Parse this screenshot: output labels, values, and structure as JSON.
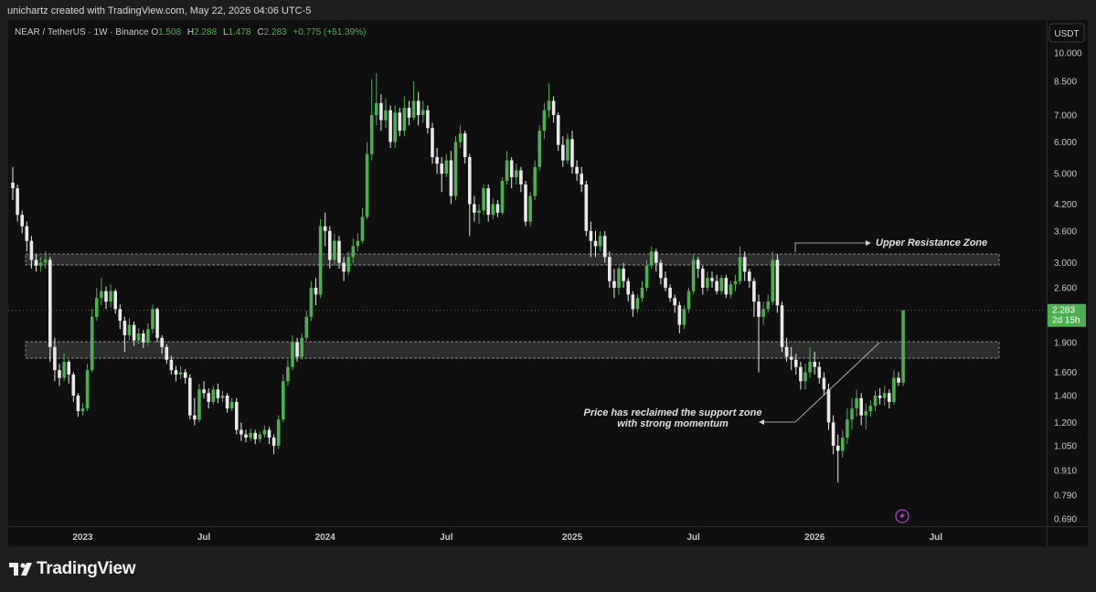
{
  "header": {
    "attribution": "unichartz created with TradingView.com, May 22, 2026 04:06 UTC-5"
  },
  "chart_data": {
    "type": "candlestick",
    "title": "NEAR / TetherUS · 1W · Binance",
    "ohlc_labels": [
      "O",
      "H",
      "L",
      "C"
    ],
    "change": "+0.775 (+51.39%)",
    "currency": "USDT",
    "countdown": "2d 15h",
    "up_color": "#4caf50",
    "down_color": "#e8e8e8",
    "log_scale": true,
    "grid": false,
    "ylim": [
      0.665,
      10.76
    ],
    "yticks": [
      {
        "value": 10,
        "label": "10.000"
      },
      {
        "value": 8.5,
        "label": "8.500"
      },
      {
        "value": 7,
        "label": "7.000"
      },
      {
        "value": 6,
        "label": "6.000"
      },
      {
        "value": 5,
        "label": "5.000"
      },
      {
        "value": 4.2,
        "label": "4.200"
      },
      {
        "value": 3.6,
        "label": "3.600"
      },
      {
        "value": 3,
        "label": "3.000"
      },
      {
        "value": 2.6,
        "label": "2.600"
      },
      {
        "value": 1.9,
        "label": "1.900"
      },
      {
        "value": 1.6,
        "label": "1.600"
      },
      {
        "value": 1.4,
        "label": "1.400"
      },
      {
        "value": 1.2,
        "label": "1.200"
      },
      {
        "value": 1.05,
        "label": "1.050"
      },
      {
        "value": 0.91,
        "label": "0.910"
      },
      {
        "value": 0.79,
        "label": "0.790"
      },
      {
        "value": 0.69,
        "label": "0.690"
      }
    ],
    "categories": [
      null,
      null,
      null,
      null,
      null,
      null,
      null,
      null,
      null,
      null,
      null,
      null,
      null,
      null,
      null,
      "2023",
      null,
      null,
      null,
      null,
      null,
      null,
      null,
      null,
      null,
      null,
      null,
      null,
      null,
      null,
      null,
      null,
      null,
      null,
      null,
      null,
      null,
      null,
      null,
      null,
      null,
      "Jul",
      null,
      null,
      null,
      null,
      null,
      null,
      null,
      null,
      null,
      null,
      null,
      null,
      null,
      null,
      null,
      null,
      null,
      null,
      null,
      null,
      null,
      null,
      null,
      null,
      null,
      "2024",
      null,
      null,
      null,
      null,
      null,
      null,
      null,
      null,
      null,
      null,
      null,
      null,
      null,
      null,
      null,
      null,
      null,
      null,
      null,
      null,
      null,
      null,
      null,
      null,
      null,
      "Jul",
      null,
      null,
      null,
      null,
      null,
      null,
      null,
      null,
      null,
      null,
      null,
      null,
      null,
      null,
      null,
      null,
      null,
      null,
      null,
      null,
      null,
      null,
      null,
      null,
      null,
      null,
      "2025",
      null,
      null,
      null,
      null,
      null,
      null,
      null,
      null,
      null,
      null,
      null,
      null,
      null,
      null,
      null,
      null,
      null,
      null,
      null,
      null,
      null,
      null,
      null,
      null,
      null,
      "Jul",
      null,
      null,
      null,
      null,
      null,
      null,
      null,
      null,
      null,
      null,
      null,
      null,
      null,
      null,
      null,
      null,
      null,
      null,
      null,
      null,
      null,
      null,
      null,
      null,
      null,
      "2026",
      null,
      null,
      null,
      null,
      null,
      null,
      null,
      null,
      null,
      null,
      null,
      null,
      null,
      null,
      null,
      null,
      null,
      null,
      null,
      null,
      null,
      null,
      null,
      null,
      null,
      "Jul"
    ],
    "open": [
      4.75,
      4.6,
      3.95,
      3.7,
      3.4,
      3.05,
      2.95,
      3.0,
      3.05,
      1.85,
      1.62,
      1.55,
      1.7,
      1.58,
      1.4,
      1.28,
      1.3,
      1.62,
      2.2,
      2.45,
      2.55,
      2.4,
      2.55,
      2.3,
      2.15,
      1.98,
      2.1,
      1.92,
      2.0,
      1.9,
      2.05,
      2.3,
      1.95,
      1.85,
      1.72,
      1.62,
      1.58,
      1.6,
      1.55,
      1.25,
      1.22,
      1.45,
      1.42,
      1.35,
      1.45,
      1.38,
      1.4,
      1.3,
      1.35,
      1.15,
      1.12,
      1.1,
      1.13,
      1.09,
      1.12,
      1.15,
      1.1,
      1.05,
      1.22,
      1.52,
      1.65,
      1.9,
      1.75,
      1.95,
      2.2,
      2.6,
      2.5,
      3.7,
      3.6,
      3.05,
      3.4,
      3.0,
      2.85,
      3.1,
      3.3,
      3.4,
      3.9,
      5.6,
      7.0,
      7.5,
      6.8,
      7.2,
      6.0,
      7.1,
      6.4,
      7.3,
      6.9,
      7.6,
      7.0,
      7.2,
      6.5,
      5.5,
      5.3,
      5.0,
      5.4,
      4.4,
      6.0,
      6.3,
      5.5,
      4.2,
      4.0,
      4.05,
      4.6,
      3.95,
      4.2,
      4.0,
      4.8,
      5.4,
      4.9,
      5.1,
      4.7,
      3.8,
      4.4,
      5.2,
      6.4,
      7.2,
      7.6,
      7.0,
      5.9,
      5.4,
      6.1,
      5.2,
      5.0,
      4.7,
      3.6,
      3.4,
      3.3,
      3.5,
      3.1,
      2.7,
      2.6,
      2.9,
      2.7,
      2.5,
      2.3,
      2.45,
      2.6,
      2.95,
      3.2,
      3.0,
      2.75,
      2.6,
      2.45,
      2.35,
      2.1,
      2.3,
      2.55,
      3.05,
      2.9,
      2.6,
      2.75,
      2.7,
      2.55,
      2.75,
      2.5,
      2.65,
      2.7,
      3.1,
      2.85,
      2.7,
      2.4,
      2.2,
      2.3,
      2.4,
      3.05,
      2.35,
      1.85,
      1.75,
      1.72,
      1.65,
      1.52,
      1.6,
      1.7,
      1.65,
      1.55,
      1.45,
      1.2,
      1.05,
      1.02,
      1.1,
      1.22,
      1.3,
      1.38,
      1.25,
      1.28,
      1.32,
      1.4,
      1.38,
      1.42,
      1.35,
      1.55,
      1.508,
      null,
      null,
      null,
      null,
      null,
      null,
      null
    ],
    "high": [
      5.2,
      4.7,
      4.05,
      3.8,
      3.5,
      3.15,
      3.1,
      3.2,
      3.1,
      1.95,
      1.68,
      1.78,
      1.72,
      1.6,
      1.42,
      1.34,
      1.68,
      2.3,
      2.6,
      2.75,
      2.62,
      2.65,
      2.58,
      2.36,
      2.2,
      2.18,
      2.14,
      2.06,
      2.04,
      2.12,
      2.36,
      2.32,
      1.98,
      1.88,
      1.76,
      1.66,
      1.66,
      1.63,
      1.58,
      1.38,
      1.5,
      1.52,
      1.46,
      1.48,
      1.5,
      1.44,
      1.42,
      1.38,
      1.38,
      1.2,
      1.15,
      1.16,
      1.15,
      1.14,
      1.18,
      1.17,
      1.12,
      1.25,
      1.58,
      1.72,
      1.98,
      1.95,
      2.0,
      2.28,
      2.7,
      2.75,
      3.85,
      4.0,
      3.7,
      3.55,
      3.5,
      3.1,
      3.2,
      3.45,
      3.55,
      4.1,
      6.0,
      8.6,
      8.9,
      7.9,
      7.7,
      7.4,
      7.4,
      7.3,
      7.8,
      7.6,
      8.5,
      8.0,
      7.6,
      7.4,
      6.7,
      5.8,
      5.5,
      5.6,
      5.7,
      6.2,
      6.6,
      6.4,
      5.6,
      4.4,
      4.2,
      4.7,
      4.7,
      4.35,
      4.3,
      4.9,
      5.7,
      5.5,
      5.3,
      5.2,
      4.8,
      4.5,
      5.4,
      6.6,
      7.5,
      8.4,
      7.8,
      7.1,
      6.2,
      6.3,
      6.4,
      5.4,
      5.2,
      4.8,
      3.8,
      3.6,
      3.6,
      3.6,
      3.2,
      2.9,
      2.95,
      3.0,
      2.75,
      2.55,
      2.5,
      2.7,
      3.05,
      3.3,
      3.25,
      3.05,
      2.85,
      2.65,
      2.5,
      2.4,
      2.35,
      2.6,
      3.15,
      3.1,
      2.95,
      2.85,
      2.85,
      2.8,
      2.8,
      2.8,
      2.7,
      2.8,
      3.3,
      3.2,
      2.9,
      2.75,
      2.5,
      2.4,
      2.5,
      3.2,
      3.15,
      2.4,
      1.95,
      1.85,
      1.78,
      1.7,
      1.68,
      1.85,
      1.8,
      1.7,
      1.6,
      1.5,
      1.25,
      1.12,
      1.15,
      1.3,
      1.38,
      1.45,
      1.42,
      1.34,
      1.36,
      1.44,
      1.46,
      1.48,
      1.45,
      1.62,
      1.6,
      2.288,
      null,
      null,
      null,
      null,
      null,
      null,
      null
    ],
    "low": [
      4.3,
      3.8,
      3.55,
      3.2,
      2.9,
      2.85,
      2.85,
      2.9,
      1.7,
      1.52,
      1.48,
      1.52,
      1.5,
      1.35,
      1.24,
      1.25,
      1.28,
      1.6,
      2.15,
      2.35,
      2.3,
      2.32,
      2.24,
      2.05,
      1.8,
      1.92,
      1.86,
      1.88,
      1.84,
      1.86,
      2.0,
      1.9,
      1.78,
      1.68,
      1.58,
      1.52,
      1.54,
      1.5,
      1.22,
      1.18,
      1.2,
      1.38,
      1.3,
      1.33,
      1.34,
      1.35,
      1.27,
      1.28,
      1.12,
      1.08,
      1.07,
      1.08,
      1.06,
      1.07,
      1.1,
      1.06,
      1.0,
      1.03,
      1.2,
      1.48,
      1.62,
      1.7,
      1.72,
      1.92,
      2.15,
      2.35,
      2.45,
      3.3,
      2.9,
      2.95,
      2.9,
      2.7,
      2.8,
      3.0,
      3.2,
      3.35,
      3.85,
      5.4,
      6.6,
      6.4,
      6.5,
      5.8,
      5.8,
      6.2,
      6.2,
      6.6,
      6.8,
      6.6,
      6.7,
      6.3,
      5.3,
      5.0,
      4.5,
      4.9,
      4.2,
      4.3,
      5.8,
      5.3,
      3.5,
      3.8,
      3.75,
      3.95,
      3.8,
      3.85,
      3.9,
      3.95,
      4.7,
      4.6,
      4.7,
      4.5,
      3.7,
      3.7,
      4.3,
      5.1,
      6.1,
      6.9,
      6.7,
      5.7,
      5.2,
      5.3,
      5.0,
      4.8,
      4.5,
      3.5,
      3.1,
      3.1,
      3.2,
      3.0,
      2.6,
      2.45,
      2.5,
      2.6,
      2.4,
      2.2,
      2.25,
      2.4,
      2.55,
      2.9,
      2.85,
      2.65,
      2.55,
      2.4,
      2.25,
      2.0,
      2.05,
      2.25,
      2.5,
      2.75,
      2.5,
      2.55,
      2.6,
      2.5,
      2.5,
      2.45,
      2.45,
      2.55,
      2.65,
      2.7,
      2.6,
      2.2,
      1.6,
      2.1,
      2.25,
      2.35,
      2.25,
      1.8,
      1.7,
      1.62,
      1.58,
      1.45,
      1.45,
      1.55,
      1.58,
      1.5,
      1.4,
      1.15,
      1.0,
      0.85,
      0.98,
      1.06,
      1.15,
      1.24,
      1.18,
      1.15,
      1.24,
      1.28,
      1.33,
      1.32,
      1.3,
      1.33,
      1.48,
      1.478,
      null,
      null,
      null,
      null,
      null,
      null,
      null
    ],
    "close": [
      4.6,
      3.95,
      3.7,
      3.4,
      3.05,
      2.95,
      3.0,
      3.05,
      1.85,
      1.62,
      1.55,
      1.7,
      1.58,
      1.4,
      1.28,
      1.3,
      1.62,
      2.2,
      2.45,
      2.55,
      2.4,
      2.55,
      2.3,
      2.15,
      1.98,
      2.1,
      1.92,
      2.0,
      1.9,
      2.05,
      2.3,
      1.95,
      1.85,
      1.72,
      1.62,
      1.58,
      1.6,
      1.55,
      1.25,
      1.22,
      1.45,
      1.42,
      1.35,
      1.45,
      1.38,
      1.4,
      1.3,
      1.35,
      1.15,
      1.12,
      1.1,
      1.13,
      1.09,
      1.12,
      1.15,
      1.1,
      1.05,
      1.22,
      1.52,
      1.65,
      1.9,
      1.75,
      1.95,
      2.2,
      2.6,
      2.5,
      3.7,
      3.6,
      3.05,
      3.4,
      3.0,
      2.85,
      3.1,
      3.3,
      3.4,
      3.9,
      5.6,
      7.0,
      7.5,
      6.8,
      7.2,
      6.0,
      7.1,
      6.4,
      7.3,
      6.9,
      7.6,
      7.0,
      7.2,
      6.5,
      5.5,
      5.3,
      5.0,
      5.4,
      4.4,
      6.0,
      6.3,
      5.5,
      4.2,
      4.0,
      4.05,
      4.6,
      3.95,
      4.2,
      4.0,
      4.8,
      5.4,
      4.9,
      5.1,
      4.7,
      3.8,
      4.4,
      5.2,
      6.4,
      7.2,
      7.6,
      7.0,
      5.9,
      5.4,
      6.1,
      5.2,
      5.0,
      4.7,
      3.6,
      3.4,
      3.3,
      3.5,
      3.1,
      2.7,
      2.6,
      2.9,
      2.7,
      2.5,
      2.3,
      2.45,
      2.6,
      2.95,
      3.2,
      3.0,
      2.75,
      2.6,
      2.45,
      2.35,
      2.1,
      2.3,
      2.55,
      3.05,
      2.9,
      2.6,
      2.75,
      2.7,
      2.55,
      2.75,
      2.5,
      2.65,
      2.7,
      3.1,
      2.85,
      2.7,
      2.4,
      2.2,
      2.3,
      2.4,
      3.05,
      2.35,
      1.85,
      1.75,
      1.72,
      1.65,
      1.52,
      1.6,
      1.7,
      1.65,
      1.55,
      1.45,
      1.2,
      1.05,
      1.02,
      1.1,
      1.22,
      1.3,
      1.38,
      1.25,
      1.28,
      1.32,
      1.4,
      1.38,
      1.42,
      1.35,
      1.55,
      1.508,
      2.283,
      null,
      null,
      null,
      null,
      null,
      null,
      null
    ],
    "zones": [
      {
        "low": 2.962,
        "high": 3.155
      },
      {
        "low": 1.735,
        "high": 1.907
      }
    ],
    "annotations": [
      {
        "lines": [
          "Upper Resistance Zone"
        ]
      },
      {
        "lines": [
          "Price has reclaimed the support zone",
          "with strong momentum"
        ]
      }
    ]
  },
  "footer": {
    "brand": "TradingView"
  }
}
